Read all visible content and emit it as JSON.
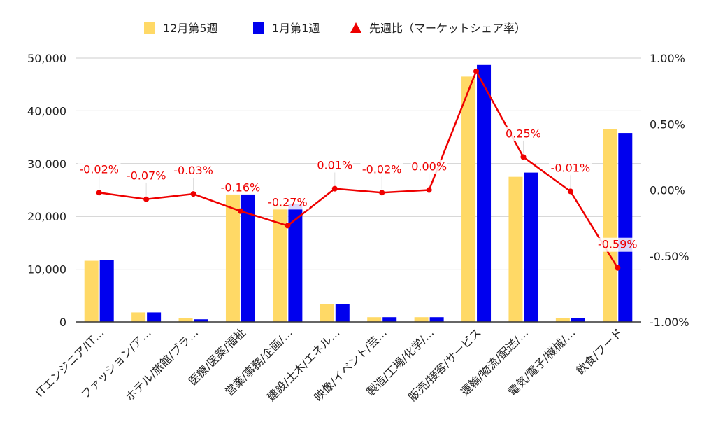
{
  "chart_data": {
    "type": "bar",
    "categories": [
      "ITエンジニア/IT…",
      "ファッション/ア…",
      "ホテル/旅館/ブラ…",
      "医療/医薬/福祉",
      "営業/事務/企画/…",
      "建設/土木/エネル…",
      "映像/イベント/芸…",
      "製造/工場/化学/…",
      "販売/接客/サービス",
      "運輸/物流/配送/…",
      "電気/電子/機械/…",
      "飲食/フード"
    ],
    "series": [
      {
        "name": "12月第5週",
        "type": "bar",
        "axis": "left",
        "color": "#ffd966",
        "values": [
          11600,
          1800,
          700,
          24200,
          22200,
          3400,
          900,
          900,
          46500,
          27500,
          700,
          36500
        ]
      },
      {
        "name": "1月第1週",
        "type": "bar",
        "axis": "left",
        "color": "#0000ee",
        "values": [
          11800,
          1800,
          500,
          24200,
          22400,
          3400,
          900,
          900,
          48700,
          28300,
          700,
          35800
        ]
      },
      {
        "name": "先週比（マーケットシェア率）",
        "type": "line",
        "axis": "right",
        "color": "#ee0000",
        "values": [
          -0.02,
          -0.07,
          -0.03,
          -0.16,
          -0.27,
          0.01,
          -0.02,
          0.0,
          0.9,
          0.25,
          -0.01,
          -0.59
        ],
        "labels": [
          "-0.02%",
          "-0.07%",
          "-0.03%",
          "-0.16%",
          "-0.27%",
          "0.01%",
          "-0.02%",
          "0.00%",
          "",
          "0.25%",
          "-0.01%",
          "-0.59%"
        ]
      }
    ],
    "y_left": {
      "ylim": [
        0,
        50000
      ],
      "ticks": [
        0,
        10000,
        20000,
        30000,
        40000,
        50000
      ],
      "tick_labels": [
        "0",
        "10,000",
        "20,000",
        "30,000",
        "40,000",
        "50,000"
      ]
    },
    "y_right": {
      "ylim": [
        -1.0,
        1.0
      ],
      "ticks": [
        -1.0,
        -0.5,
        0.0,
        0.5,
        1.0
      ],
      "tick_labels": [
        "-1.00%",
        "-0.50%",
        "0.00%",
        "0.50%",
        "1.00%"
      ]
    },
    "legend_position": "top-center",
    "grid": true,
    "title": "",
    "xlabel": "",
    "ylabel": ""
  }
}
